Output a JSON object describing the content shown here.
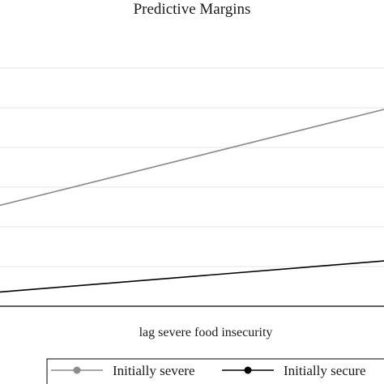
{
  "chart_data": {
    "type": "line",
    "title": "Predictive Margins",
    "xlabel": "lag severe food insecurity",
    "ylabel": "",
    "x": [
      0,
      1
    ],
    "xlim": [
      0,
      1
    ],
    "ylim": [
      0,
      0.35
    ],
    "yticks": [
      0,
      0.05,
      0.1,
      0.15,
      0.2,
      0.25,
      0.3
    ],
    "grid": true,
    "legend_position": "bottom",
    "series": [
      {
        "name": "Initially severe",
        "color": "#8c8c8c",
        "marker": "circle",
        "values": [
          0.127,
          0.248
        ]
      },
      {
        "name": "Initially secure",
        "color": "#000000",
        "marker": "circle",
        "values": [
          0.018,
          0.057
        ]
      }
    ]
  }
}
